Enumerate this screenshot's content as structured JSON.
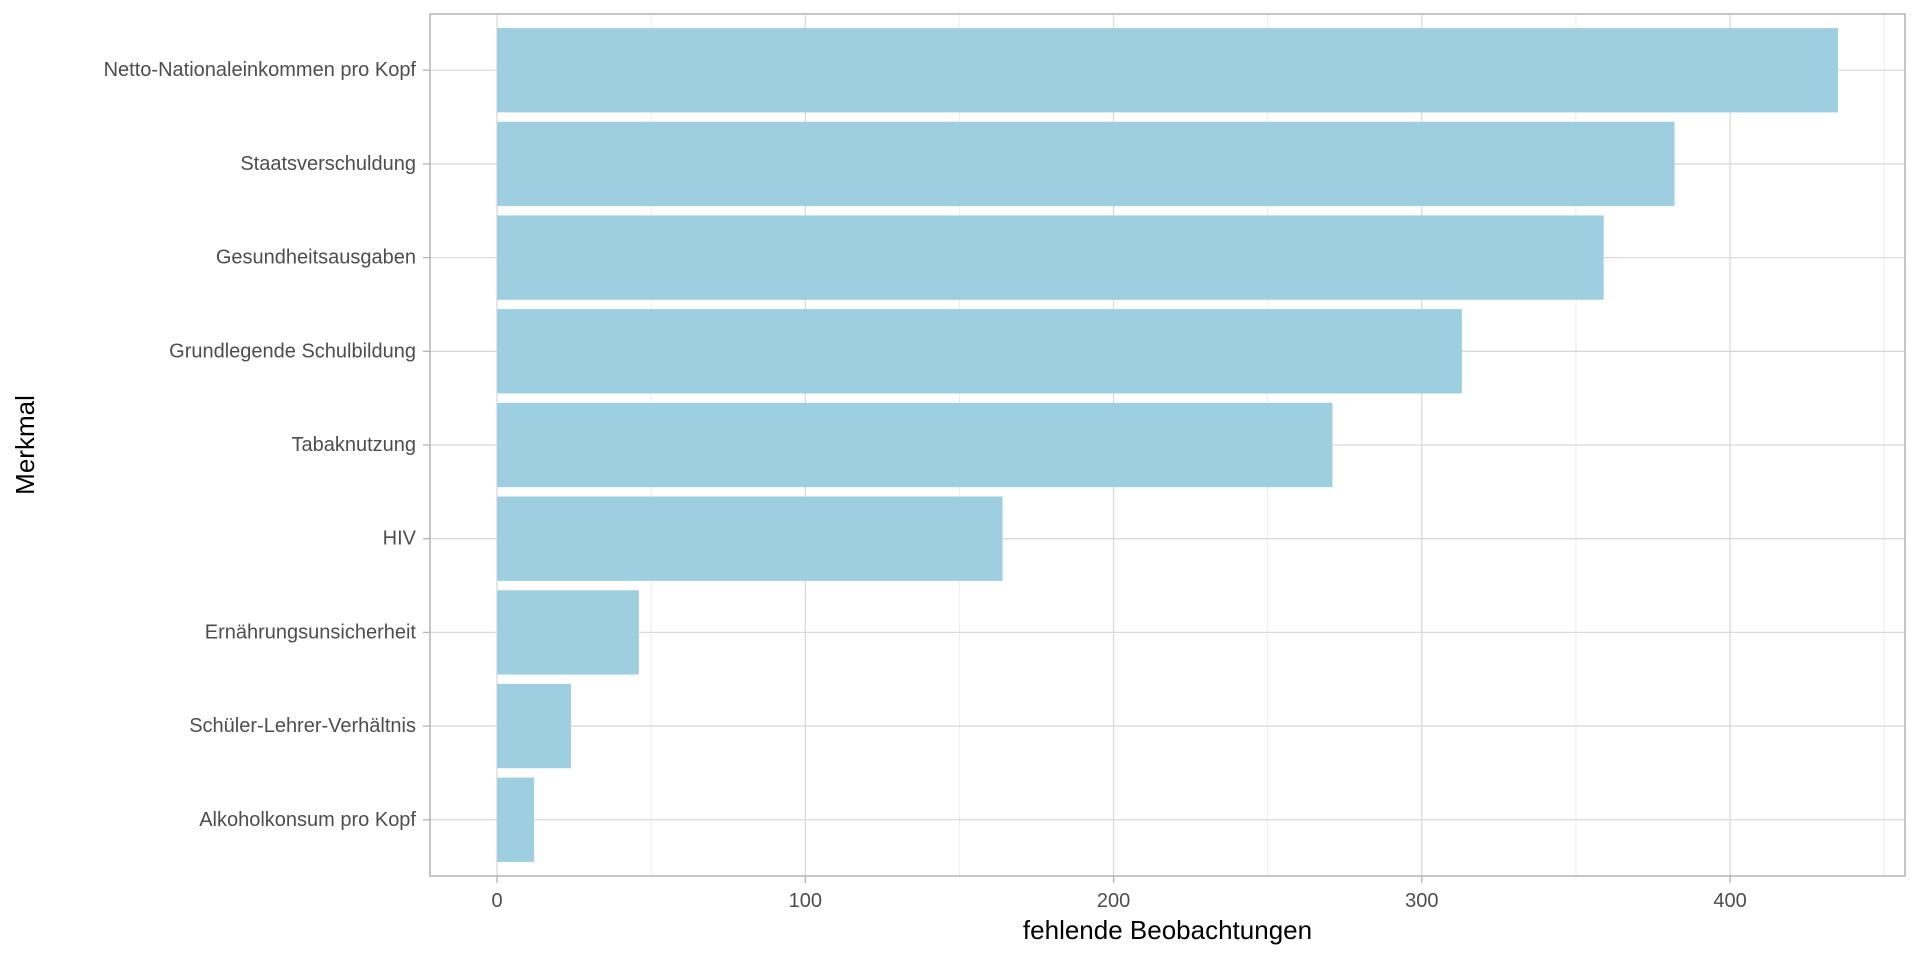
{
  "chart_data": {
    "type": "bar",
    "orientation": "horizontal",
    "categories": [
      "Netto-Nationaleinkommen pro Kopf",
      "Staatsverschuldung",
      "Gesundheitsausgaben",
      "Grundlegende Schulbildung",
      "Tabaknutzung",
      "HIV",
      "Ernährungsunsicherheit",
      "Schüler-Lehrer-Verhältnis",
      "Alkoholkonsum pro Kopf"
    ],
    "values": [
      435,
      382,
      359,
      313,
      271,
      164,
      46,
      24,
      12
    ],
    "xlabel": "fehlende Beobachtungen",
    "ylabel": "Merkmal",
    "xlim": [
      -21.75,
      456.75
    ],
    "xticks": [
      0,
      100,
      200,
      300,
      400
    ],
    "xtick_labels": [
      "0",
      "100",
      "200",
      "300",
      "400"
    ],
    "grid": true,
    "legend": "none",
    "colors": {
      "bar": "#9ecfe0",
      "grid_major": "#d9d9d9",
      "grid_minor": "#ececec",
      "panel_border": "#b3b3b3",
      "tick_mark": "#b3b3b3"
    }
  }
}
